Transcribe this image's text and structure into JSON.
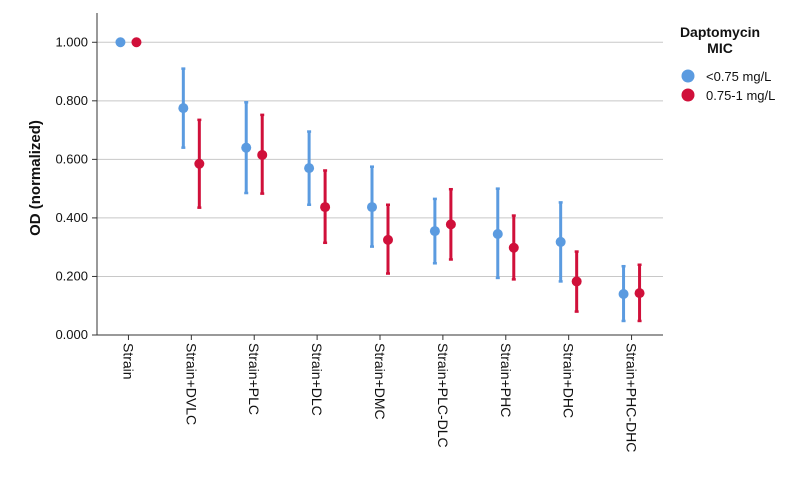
{
  "chart_data": {
    "type": "scatter",
    "categories": [
      "Strain",
      "Strain+DVLC",
      "Strain+PLC",
      "Strain+DLC",
      "Strain+DMC",
      "Strain+PLC-DLC",
      "Strain+PHC",
      "Strain+DHC",
      "Strain+PHC-DHC"
    ],
    "ylabel": "OD (normalized)",
    "xlabel": "",
    "ylim": [
      0,
      1.1
    ],
    "yticks": [
      "0.000",
      "0.200",
      "0.400",
      "0.600",
      "0.800",
      "1.000"
    ],
    "ytick_values": [
      0,
      0.2,
      0.4,
      0.6,
      0.8,
      1.0
    ],
    "grid": "horizontal",
    "legend_title": "Daptomycin MIC",
    "legend_position": "top-right",
    "series": [
      {
        "name": "<0.75 mg/L",
        "color": "#5b9be0",
        "values": [
          1.0,
          0.775,
          0.64,
          0.57,
          0.437,
          0.355,
          0.345,
          0.318,
          0.14
        ],
        "lower": [
          null,
          0.64,
          0.485,
          0.445,
          0.302,
          0.245,
          0.195,
          0.183,
          0.048
        ],
        "upper": [
          null,
          0.91,
          0.795,
          0.695,
          0.575,
          0.465,
          0.5,
          0.453,
          0.235
        ]
      },
      {
        "name": "0.75-1 mg/L",
        "color": "#d0103a",
        "values": [
          1.0,
          0.585,
          0.615,
          0.437,
          0.325,
          0.378,
          0.298,
          0.183,
          0.143
        ],
        "lower": [
          null,
          0.435,
          0.483,
          0.315,
          0.21,
          0.258,
          0.19,
          0.08,
          0.048
        ],
        "upper": [
          null,
          0.735,
          0.752,
          0.562,
          0.445,
          0.498,
          0.408,
          0.285,
          0.24
        ]
      }
    ]
  }
}
